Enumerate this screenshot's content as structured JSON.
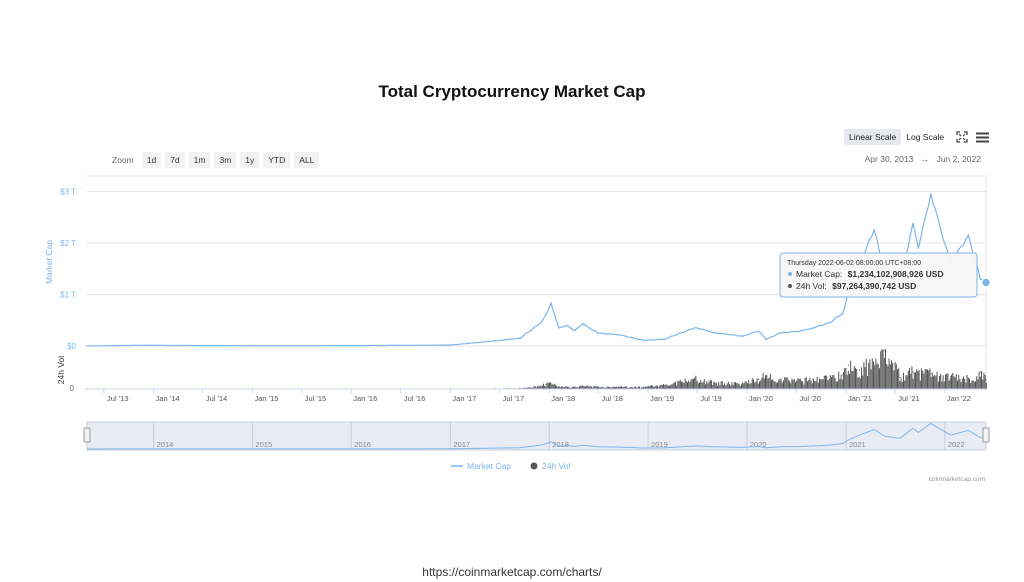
{
  "title": "Total Cryptocurrency Market Cap",
  "toolbar": {
    "linear_label": "Linear Scale",
    "log_label": "Log Scale",
    "fullscreen_icon": "fullscreen-icon",
    "menu_icon": "menu-icon"
  },
  "zoom": {
    "label": "Zoom",
    "buttons": [
      "1d",
      "7d",
      "1m",
      "3m",
      "1y",
      "YTD",
      "ALL"
    ]
  },
  "range": {
    "from": "Apr 30, 2013",
    "arrow": "→",
    "to": "Jun 2, 2022"
  },
  "tooltip": {
    "date": "Thursday 2022-06-02 08:00:00 UTC+08:00",
    "market_cap_label": "Market Cap:",
    "market_cap_value": "$1,234,102,908,926 USD",
    "vol_label": "24h Vol:",
    "vol_value": "$97,264,390,742 USD"
  },
  "credit": "coinmarketcap.com",
  "source_url": "https://coinmarketcap.com/charts/",
  "colors": {
    "market_cap": "#7cb5ec",
    "volume": "#555555",
    "navigator_fill": "#d6dcec"
  },
  "chart_data": {
    "type": "line",
    "x_ticks": [
      "Jul '13",
      "Jan '14",
      "Jul '14",
      "Jan '15",
      "Jul '15",
      "Jan '16",
      "Jul '16",
      "Jan '17",
      "Jul '17",
      "Jan '18",
      "Jul '18",
      "Jan '19",
      "Jul '19",
      "Jan '20",
      "Jul '20",
      "Jan '21",
      "Jul '21",
      "Jan '22"
    ],
    "y_ticks": [
      "$0",
      "$1 T",
      "$2 T",
      "$3 T"
    ],
    "ylabel": "Market Cap",
    "ylim": [
      0,
      3.3
    ],
    "volume_ylabel": "24h Vol",
    "volume_y_ticks": [
      "0"
    ],
    "navigator_ticks": [
      "2014",
      "2015",
      "2016",
      "2017",
      "2018",
      "2019",
      "2020",
      "2021",
      "2022"
    ],
    "legend": [
      "Market Cap",
      "24h Vol"
    ],
    "x": [
      "2013-04-30",
      "2013-12-01",
      "2014-03-01",
      "2015-01-01",
      "2016-01-01",
      "2017-01-01",
      "2017-06-15",
      "2017-09-15",
      "2017-12-01",
      "2017-12-20",
      "2018-01-07",
      "2018-02-06",
      "2018-03-05",
      "2018-04-06",
      "2018-05-05",
      "2018-06-30",
      "2018-09-15",
      "2018-12-15",
      "2019-03-01",
      "2019-06-26",
      "2019-09-01",
      "2019-12-15",
      "2020-02-13",
      "2020-03-13",
      "2020-05-01",
      "2020-07-15",
      "2020-09-01",
      "2020-11-01",
      "2020-12-20",
      "2021-01-10",
      "2021-02-20",
      "2021-04-15",
      "2021-05-25",
      "2021-07-20",
      "2021-09-05",
      "2021-09-25",
      "2021-11-10",
      "2021-12-15",
      "2022-01-23",
      "2022-03-29",
      "2022-05-12",
      "2022-06-02"
    ],
    "series": [
      {
        "name": "Market Cap",
        "values": [
          0.0015,
          0.013,
          0.01,
          0.006,
          0.007,
          0.018,
          0.1,
          0.15,
          0.45,
          0.62,
          0.83,
          0.35,
          0.4,
          0.3,
          0.43,
          0.25,
          0.22,
          0.11,
          0.13,
          0.36,
          0.26,
          0.19,
          0.29,
          0.13,
          0.25,
          0.29,
          0.35,
          0.45,
          0.63,
          1.05,
          1.6,
          2.25,
          1.45,
          1.25,
          2.38,
          1.9,
          2.95,
          2.3,
          1.6,
          2.15,
          1.3,
          1.234
        ]
      },
      {
        "name": "24h Vol",
        "values": [
          0.0001,
          0.001,
          0.0008,
          0.0005,
          0.0005,
          0.001,
          0.003,
          0.008,
          0.03,
          0.05,
          0.06,
          0.02,
          0.025,
          0.02,
          0.03,
          0.02,
          0.02,
          0.02,
          0.04,
          0.1,
          0.06,
          0.05,
          0.1,
          0.13,
          0.1,
          0.08,
          0.1,
          0.1,
          0.15,
          0.25,
          0.2,
          0.25,
          0.4,
          0.12,
          0.18,
          0.15,
          0.16,
          0.12,
          0.13,
          0.1,
          0.18,
          0.097
        ]
      }
    ]
  }
}
